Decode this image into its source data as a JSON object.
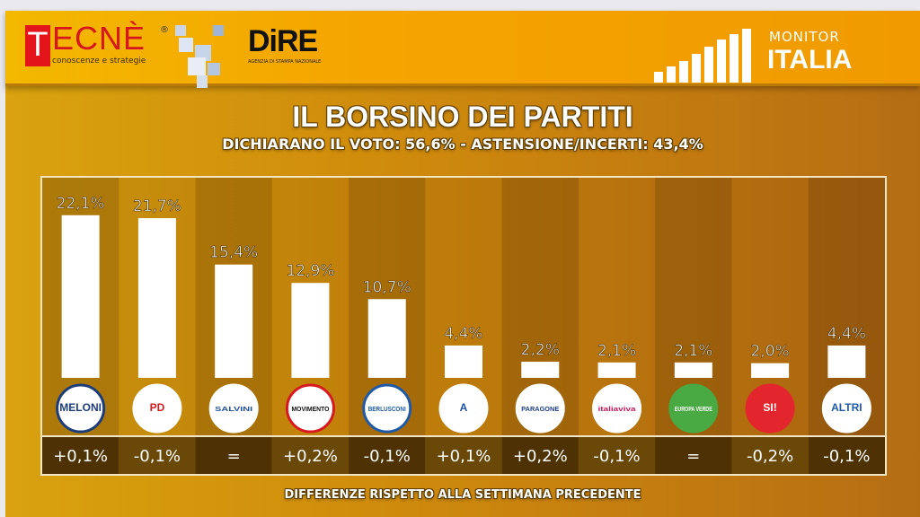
{
  "header": {
    "tecne_letter": "T",
    "tecne_rest": "ECNÈ",
    "tecne_sub": "conoscenze e strategie",
    "tecne_reg": "®",
    "dire": "DiRE",
    "dire_sub": "AGENZIA DI STAMPA NAZIONALE",
    "monitor": "MONITOR",
    "italia": "ITALIA"
  },
  "chart_data": {
    "type": "bar",
    "title": "IL BORSINO DEI PARTITI",
    "subtitle": "DICHIARANO IL VOTO: 56,6% - ASTENSIONE/INCERTI: 43,4%",
    "footer": "DIFFERENZE RISPETTO ALLA SETTIMANA PRECEDENTE",
    "categories": [
      "Fratelli d'Italia",
      "Partito Democratico",
      "Lega",
      "Movimento 5 Stelle",
      "Forza Italia",
      "Azione - Europa",
      "Italia Paragone",
      "Italia Viva",
      "Europa Verde",
      "Sinistra Italiana",
      "Altri"
    ],
    "values": [
      22.1,
      21.7,
      15.4,
      12.9,
      10.7,
      4.4,
      2.2,
      2.1,
      2.1,
      2.0,
      4.4
    ],
    "value_labels": [
      "22,1%",
      "21,7%",
      "15,4%",
      "12,9%",
      "10,7%",
      "4,4%",
      "2,2%",
      "2,1%",
      "2,1%",
      "2,0%",
      "4,4%"
    ],
    "changes": [
      "+0,1%",
      "-0,1%",
      "=",
      "+0,2%",
      "-0,1%",
      "+0,1%",
      "+0,2%",
      "-0,1%",
      "=",
      "-0,2%",
      "-0,1%"
    ],
    "logos": [
      {
        "text": "MELONI",
        "bg": "#ffffff",
        "ring": "#1d3d7a",
        "fg": "#1d3d7a"
      },
      {
        "text": "PD",
        "bg": "#ffffff",
        "ring": "#ffffff",
        "fg": "#d71920"
      },
      {
        "text": "SALVINI",
        "bg": "#ffffff",
        "ring": "#ffffff",
        "fg": "#1e4fa0"
      },
      {
        "text": "MOVIMENTO",
        "bg": "#ffffff",
        "ring": "#d71920",
        "fg": "#111111"
      },
      {
        "text": "BERLUSCONI",
        "bg": "#ffffff",
        "ring": "#1e5aa8",
        "fg": "#1e5aa8"
      },
      {
        "text": "A",
        "bg": "#ffffff",
        "ring": "#ffffff",
        "fg": "#1e4fa0"
      },
      {
        "text": "PARAGONE",
        "bg": "#ffffff",
        "ring": "#ffffff",
        "fg": "#1e3f8a"
      },
      {
        "text": "italiaviva",
        "bg": "#ffffff",
        "ring": "#ffffff",
        "fg": "#c2185b"
      },
      {
        "text": "EUROPA VERDE",
        "bg": "#49a942",
        "ring": "#49a942",
        "fg": "#ffffff"
      },
      {
        "text": "SI!",
        "bg": "#e3262e",
        "ring": "#e3262e",
        "fg": "#ffffff"
      },
      {
        "text": "ALTRI",
        "bg": "#ffffff",
        "ring": "#ffffff",
        "fg": "#1e5aa8"
      }
    ],
    "ylim": [
      0,
      25
    ]
  }
}
